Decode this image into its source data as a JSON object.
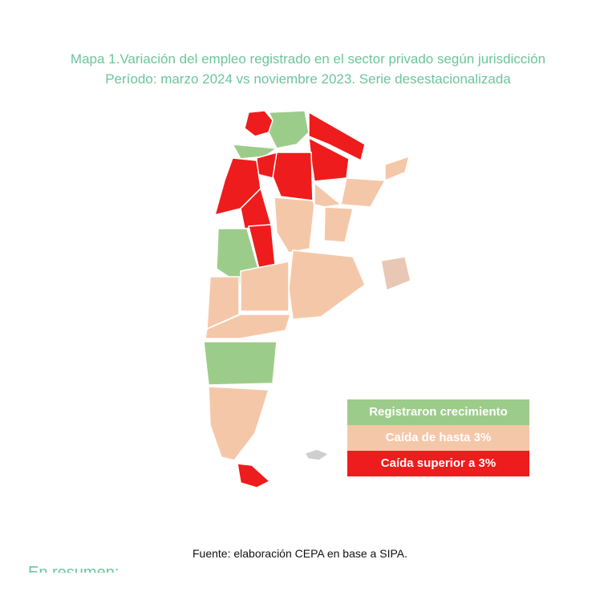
{
  "title": [
    "Mapa 1.Variación del empleo registrado en el sector privado según jurisdicción",
    "Período: marzo 2024 vs noviembre 2023. Serie desestacionalizada"
  ],
  "legend": [
    {
      "label": "Registraron crecimiento",
      "color": "#9ccc8a"
    },
    {
      "label": "Caída de hasta 3%",
      "color": "#f5c7a9"
    },
    {
      "label": "Caída superior a 3%",
      "color": "#ee1c1c"
    }
  ],
  "source": "Fuente: elaboración CEPA en base a SIPA.",
  "footer_heading": "En resumen:"
}
